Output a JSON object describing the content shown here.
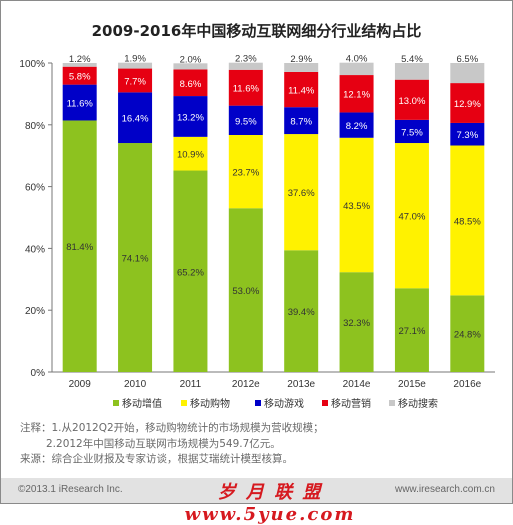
{
  "title": "2009-2016年中国移动互联网细分行业结构占比",
  "chart_data": {
    "type": "bar",
    "stacked": true,
    "categories": [
      "2009",
      "2010",
      "2011",
      "2012e",
      "2013e",
      "2014e",
      "2015e",
      "2016e"
    ],
    "series": [
      {
        "name": "移动增值",
        "color": "#8dc21f",
        "values": [
          81.4,
          74.1,
          65.2,
          53.0,
          39.4,
          32.3,
          27.1,
          24.8
        ]
      },
      {
        "name": "移动购物",
        "color": "#fff200",
        "values": [
          0.0,
          0.0,
          10.9,
          23.7,
          37.6,
          43.5,
          47.0,
          48.5
        ]
      },
      {
        "name": "移动游戏",
        "color": "#0000c8",
        "values": [
          11.6,
          16.4,
          13.2,
          9.5,
          8.7,
          8.2,
          7.5,
          7.3
        ]
      },
      {
        "name": "移动营销",
        "color": "#e60012",
        "values": [
          5.8,
          7.7,
          8.6,
          11.6,
          11.4,
          12.1,
          13.0,
          12.9
        ]
      },
      {
        "name": "移动搜索",
        "color": "#c8c8c8",
        "values": [
          1.2,
          1.9,
          2.0,
          2.3,
          2.9,
          4.0,
          5.4,
          6.5
        ]
      }
    ],
    "data_labels": [
      [
        "81.4%",
        "74.1%",
        "65.2%",
        "53.0%",
        "39.4%",
        "32.3%",
        "27.1%",
        "24.8%"
      ],
      [
        "",
        "",
        "10.9%",
        "23.7%",
        "37.6%",
        "43.5%",
        "47.0%",
        "48.5%"
      ],
      [
        "11.6%",
        "16.4%",
        "13.2%",
        "9.5%",
        "8.7%",
        "8.2%",
        "7.5%",
        "7.3%"
      ],
      [
        "5.8%",
        "7.7%",
        "8.6%",
        "11.6%",
        "11.4%",
        "12.1%",
        "13.0%",
        "12.9%"
      ],
      [
        "1.2%",
        "1.9%",
        "2.0%",
        "2.3%",
        "2.9%",
        "4.0%",
        "5.4%",
        "6.5%"
      ]
    ],
    "ylim": [
      0,
      100
    ],
    "yticks": [
      "0%",
      "20%",
      "40%",
      "60%",
      "80%",
      "100%"
    ],
    "grid": false,
    "legend_position": "bottom"
  },
  "notes": [
    "注释：1.从2012Q2开始，移动购物统计的市场规模为营收规模；",
    "2.2012年中国移动互联网市场规模为549.7亿元。",
    "来源：综合企业财报及专家访谈，根据艾瑞统计模型核算。"
  ],
  "footer": {
    "copyright": "©2013.1 iResearch Inc.",
    "watermark": "岁 月 联 盟  www.5yue.com",
    "website": "www.iresearch.com.cn"
  }
}
